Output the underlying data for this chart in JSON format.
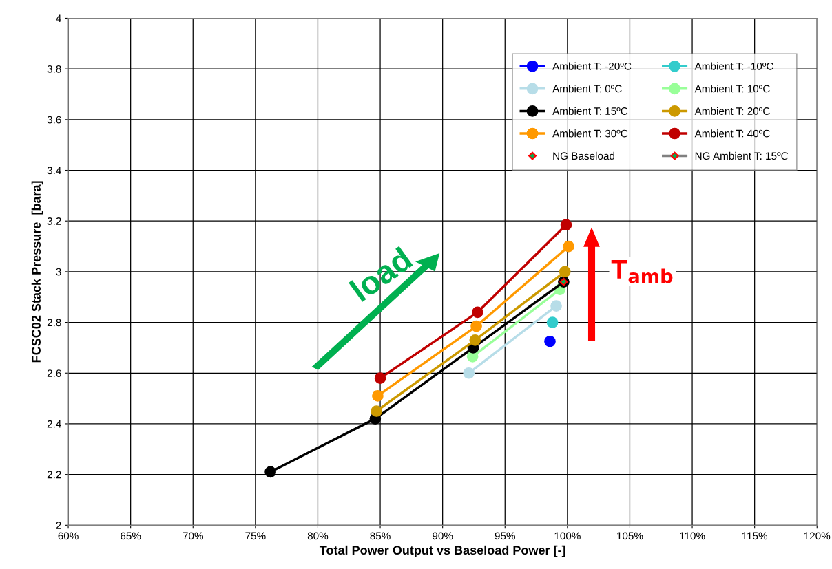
{
  "chart_data": {
    "type": "line",
    "xlabel": "Total Power Output vs Baseload Power [-]",
    "ylabel": "FCSC02 Stack Pressure  [bara]",
    "xlim": [
      60,
      120
    ],
    "xticks": [
      {
        "value": 60,
        "label": "60%"
      },
      {
        "value": 65,
        "label": "65%"
      },
      {
        "value": 70,
        "label": "70%"
      },
      {
        "value": 75,
        "label": "75%"
      },
      {
        "value": 80,
        "label": "80%"
      },
      {
        "value": 85,
        "label": "85%"
      },
      {
        "value": 90,
        "label": "90%"
      },
      {
        "value": 95,
        "label": "95%"
      },
      {
        "value": 100,
        "label": "100%"
      },
      {
        "value": 105,
        "label": "105%"
      },
      {
        "value": 110,
        "label": "110%"
      },
      {
        "value": 115,
        "label": "115%"
      },
      {
        "value": 120,
        "label": "120%"
      }
    ],
    "ylim": [
      2,
      4
    ],
    "yticks": [
      2,
      2.2,
      2.4,
      2.6,
      2.8,
      3,
      3.2,
      3.4,
      3.6,
      3.8,
      4
    ],
    "grid": true,
    "legend": "top right",
    "marker": "circle",
    "line_style": "solid",
    "annotations": [
      "load",
      "T$_{amb}$"
    ],
    "series": [
      {
        "name": "Ambient T: -20ºC",
        "color": "#0000ff",
        "x": [
          98.6
        ],
        "values": [
          2.725
        ]
      },
      {
        "name": "Ambient T: -10ºC",
        "color": "#33cccc",
        "x": [
          98.8
        ],
        "values": [
          2.8
        ]
      },
      {
        "name": "Ambient T: 0ºC",
        "color": "#b7dde8",
        "x": [
          92.1,
          99.1
        ],
        "values": [
          2.6,
          2.865
        ]
      },
      {
        "name": "Ambient T: 10ºC",
        "color": "#99ff99",
        "x": [
          92.4,
          99.4
        ],
        "values": [
          2.665,
          2.93
        ]
      },
      {
        "name": "Ambient T: 15ºC",
        "color": "#000000",
        "x": [
          76.2,
          84.6,
          92.45,
          99.7
        ],
        "values": [
          2.21,
          2.42,
          2.7,
          2.96
        ]
      },
      {
        "name": "Ambient T: 20ºC",
        "color": "#cc9900",
        "x": [
          84.7,
          92.6,
          99.8
        ],
        "values": [
          2.45,
          2.73,
          3.0
        ]
      },
      {
        "name": "Ambient T: 30ºC",
        "color": "#ff9900",
        "x": [
          84.8,
          92.7,
          100.1
        ],
        "values": [
          2.51,
          2.785,
          3.1
        ]
      },
      {
        "name": "Ambient T: 40ºC",
        "color": "#c00000",
        "x": [
          85.0,
          92.8,
          99.9
        ],
        "values": [
          2.58,
          2.84,
          3.185
        ]
      },
      {
        "name": "NG Baseload",
        "type": "scatter",
        "marker": "diamond",
        "color": "#ff0000",
        "x": [
          99.7
        ],
        "values": [
          2.96
        ]
      },
      {
        "name": "NG Ambient T: 15ºC",
        "color": "#808080",
        "marker": "diamond",
        "x": [
          null
        ],
        "values": [
          null
        ]
      }
    ]
  }
}
